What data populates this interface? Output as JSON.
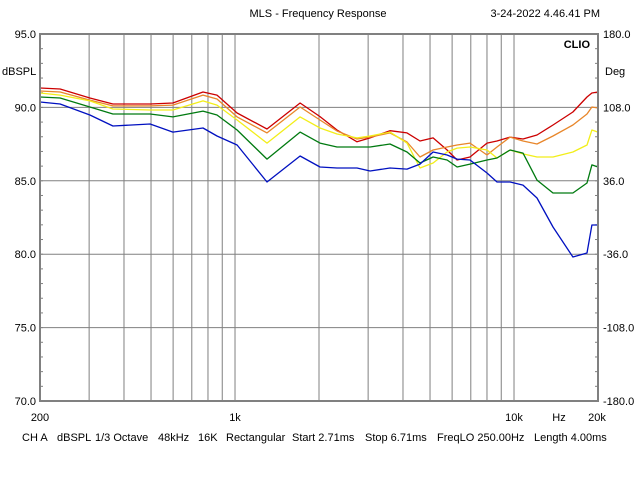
{
  "header": {
    "title": "MLS - Frequency Response",
    "timestamp": "3-24-2022 4.46.41 PM",
    "logo": "CLIO"
  },
  "footer": {
    "items": [
      "CH A",
      "dBSPL",
      "1/3 Octave",
      "48kHz",
      "16K",
      "Rectangular",
      "Start 2.71ms",
      "Stop 6.71ms",
      "FreqLO 250.00Hz",
      "Length 4.00ms"
    ]
  },
  "chart_data": {
    "type": "line",
    "title": "MLS - Frequency Response",
    "xlabel": "Hz",
    "ylabel": "dBSPL",
    "y2label": "Deg",
    "xscale": "log",
    "xlim": [
      200,
      20000
    ],
    "ylim": [
      70,
      95
    ],
    "y2lim": [
      -180,
      180
    ],
    "grid": true,
    "x_tick_labels": [
      {
        "value": 200,
        "label": "200"
      },
      {
        "value": 1000,
        "label": "1k"
      },
      {
        "value": 10000,
        "label": "10k"
      },
      {
        "value": 20000,
        "label": "20k"
      }
    ],
    "x_unit_label": "Hz",
    "y_tick_labels": [
      "95.0",
      "90.0",
      "85.0",
      "80.0",
      "75.0",
      "70.0"
    ],
    "y_ticks": [
      95,
      90,
      85,
      80,
      75,
      70
    ],
    "y2_tick_labels": [
      "180.0",
      "108.0",
      "36.0",
      "-36.0",
      "-108.0",
      "-180.0"
    ],
    "x_gridlines": [
      300,
      400,
      500,
      600,
      700,
      800,
      900,
      1000,
      2000,
      3000,
      4000,
      5000,
      6000,
      7000,
      8000,
      9000,
      10000
    ],
    "x": [
      200,
      236,
      302,
      365,
      496,
      599,
      768,
      862,
      1017,
      1302,
      1711,
      2017,
      2321,
      2737,
      3048,
      3593,
      4133,
      4603,
      5130,
      5757,
      6252,
      6957,
      8002,
      8690,
      9681,
      10770,
      12085,
      13800,
      16260,
      18270,
      19020,
      20000
    ],
    "series": [
      {
        "name": "red",
        "color": "#cc0000",
        "values": [
          91.32,
          91.25,
          90.64,
          90.23,
          90.23,
          90.3,
          91.05,
          90.84,
          89.62,
          88.53,
          90.3,
          89.37,
          88.46,
          87.66,
          87.92,
          88.41,
          88.26,
          87.71,
          87.92,
          87.1,
          86.42,
          86.62,
          87.57,
          87.71,
          87.98,
          87.85,
          88.12,
          88.8,
          89.69,
          90.71,
          90.98,
          91.05
        ]
      },
      {
        "name": "orange",
        "color": "#e8862a",
        "values": [
          91.12,
          91.05,
          90.5,
          90.1,
          90.1,
          90.16,
          90.84,
          90.57,
          89.35,
          88.26,
          90.03,
          89.14,
          88.39,
          87.85,
          87.98,
          88.26,
          87.64,
          86.62,
          87.1,
          87.3,
          87.44,
          87.57,
          86.76,
          87.3,
          87.98,
          87.71,
          87.51,
          88.05,
          88.8,
          89.55,
          90.03,
          89.96
        ]
      },
      {
        "name": "yellow",
        "color": "#f2ee1a",
        "values": [
          90.98,
          90.84,
          90.44,
          89.89,
          89.82,
          89.82,
          90.44,
          90.16,
          89.14,
          87.57,
          89.35,
          88.6,
          88.19,
          87.92,
          88.05,
          88.32,
          87.57,
          85.87,
          86.21,
          86.96,
          87.23,
          87.3,
          87.1,
          86.55,
          87.1,
          86.83,
          86.62,
          86.62,
          86.96,
          87.44,
          88.46,
          88.32
        ]
      },
      {
        "name": "green",
        "color": "#007a10",
        "values": [
          90.71,
          90.64,
          90.03,
          89.55,
          89.55,
          89.35,
          89.75,
          89.48,
          88.46,
          86.48,
          88.32,
          87.57,
          87.3,
          87.3,
          87.3,
          87.51,
          86.96,
          86.21,
          86.62,
          86.42,
          85.94,
          86.14,
          86.42,
          86.55,
          87.1,
          86.89,
          85.05,
          84.17,
          84.17,
          84.85,
          86.08,
          85.94
        ]
      },
      {
        "name": "blue",
        "color": "#0010c0",
        "values": [
          90.37,
          90.23,
          89.48,
          88.73,
          88.87,
          88.32,
          88.6,
          88.05,
          87.44,
          84.92,
          86.69,
          85.94,
          85.87,
          85.87,
          85.67,
          85.87,
          85.8,
          86.14,
          86.96,
          86.76,
          86.48,
          86.42,
          85.53,
          84.92,
          84.92,
          84.71,
          83.83,
          81.85,
          79.81,
          80.08,
          81.99,
          81.99
        ]
      }
    ]
  }
}
